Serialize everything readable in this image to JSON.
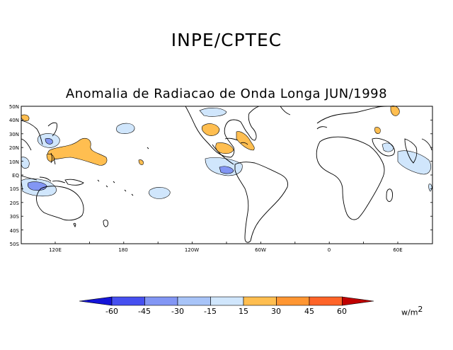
{
  "header": {
    "institution": "INPE/CPTEC"
  },
  "map": {
    "title": "Anomalia de Radiacao de Onda Longa JUN/1998",
    "lat_labels": [
      "50N",
      "40N",
      "30N",
      "20N",
      "10N",
      "EQ",
      "10S",
      "20S",
      "30S",
      "40S",
      "50S"
    ],
    "lon_labels": [
      "120E",
      "180",
      "120W",
      "60W",
      "0",
      "60E"
    ]
  },
  "colorbar": {
    "levels": [
      "-60",
      "-45",
      "-30",
      "-15",
      "15",
      "30",
      "45",
      "60"
    ],
    "colors": [
      "#1414d8",
      "#4650f0",
      "#8296f4",
      "#a8c4f8",
      "#d0e6fc",
      "#ffffff",
      "#ffbe50",
      "#ff9632",
      "#ff6428",
      "#e62e14",
      "#c00000"
    ],
    "units_base": "w/m",
    "units_exp": "2"
  },
  "anomaly_colors": {
    "positive_light": "#ffbe50",
    "negative_light": "#d0e6fc",
    "negative_medium": "#8296f4"
  }
}
